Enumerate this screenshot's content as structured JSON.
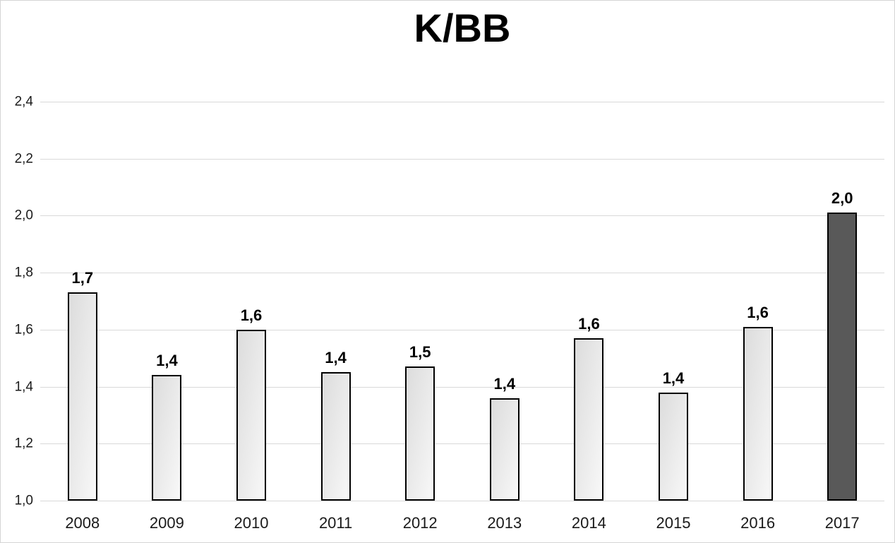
{
  "chart_data": {
    "type": "bar",
    "title": "K/BB",
    "xlabel": "",
    "ylabel": "",
    "categories": [
      "2008",
      "2009",
      "2010",
      "2011",
      "2012",
      "2013",
      "2014",
      "2015",
      "2016",
      "2017"
    ],
    "values": [
      1.73,
      1.44,
      1.6,
      1.45,
      1.47,
      1.36,
      1.57,
      1.38,
      1.61,
      2.01
    ],
    "value_labels": [
      "1,7",
      "1,4",
      "1,6",
      "1,4",
      "1,5",
      "1,4",
      "1,6",
      "1,4",
      "1,6",
      "2,0"
    ],
    "ylim": [
      1.0,
      2.4
    ],
    "y_ticks": [
      1.0,
      1.2,
      1.4,
      1.6,
      1.8,
      2.0,
      2.2,
      2.4
    ],
    "y_tick_labels": [
      "1,0",
      "1,2",
      "1,4",
      "1,6",
      "1,8",
      "2,0",
      "2,2",
      "2,4"
    ],
    "grid": true,
    "legend": false,
    "highlight_category": "2017",
    "colors": {
      "bar_fill_top": "#dcdcdc",
      "bar_fill_bottom": "#f8f8f8",
      "bar_border": "#000000",
      "highlight_fill": "#595959",
      "gridline": "#d9d9d9",
      "axis_text": "#1a1a1a",
      "value_label_text": "#000000",
      "title_text": "#000000",
      "background": "#ffffff"
    }
  }
}
